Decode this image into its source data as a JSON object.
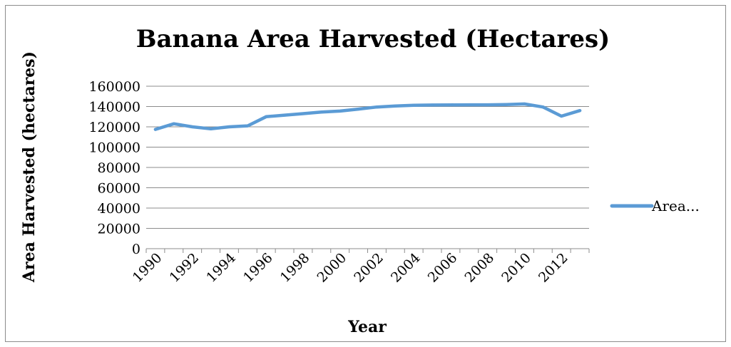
{
  "chart_data": {
    "type": "line",
    "title": "Banana Area Harvested (Hectares)",
    "xlabel": "Year",
    "ylabel": "Area Harvested (hectares)",
    "ylim": [
      0,
      160000
    ],
    "yticks": [
      "0",
      "20000",
      "40000",
      "60000",
      "80000",
      "100000",
      "120000",
      "140000",
      "160000"
    ],
    "x": [
      1990,
      1991,
      1992,
      1993,
      1994,
      1995,
      1996,
      1997,
      1998,
      1999,
      2000,
      2001,
      2002,
      2003,
      2004,
      2005,
      2006,
      2007,
      2008,
      2009,
      2010,
      2011,
      2012,
      2013
    ],
    "xtick_labels": [
      "1990",
      "1992",
      "1994",
      "1996",
      "1998",
      "2000",
      "2002",
      "2004",
      "2006",
      "2008",
      "2010",
      "2012"
    ],
    "grid": true,
    "legend_position": "right",
    "series": [
      {
        "name": "Area...",
        "color": "#5b9bd5",
        "values": [
          117500,
          123000,
          120000,
          118000,
          120000,
          121000,
          130000,
          131500,
          133000,
          134500,
          135500,
          137500,
          139500,
          140500,
          141200,
          141500,
          141600,
          141700,
          141700,
          142000,
          142500,
          139500,
          130500,
          136000
        ]
      }
    ]
  }
}
